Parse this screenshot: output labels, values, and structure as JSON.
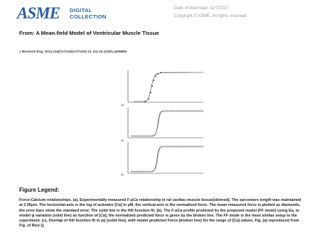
{
  "header": {
    "logo": "ASME",
    "logo_line1": "DIGITAL",
    "logo_line2": "COLLECTION",
    "date": "Date of download:  11/7/2017",
    "copyright": "Copyright © ASME. All rights reserved."
  },
  "title": "From: A Mean-field Model of Ventricular Muscle Tissue",
  "citation": "J Biomech Eng. 2012;134(7):071003-071003-13. doi:10.1115/1.4006850",
  "figure": {
    "panels": [
      "(a)",
      "(b)",
      "(c)"
    ]
  },
  "legend": {
    "heading": "Figure Legend:",
    "text": "Force-Calcium relationships. (a), Experimentally measured F-pCa relationship in rat cardiac-muscle tissue(skinned). The sarcomere length was maintained at 2.05μm. The horizontal-axis is the log of activator [Ca] in μM, the vertical-axis is the normalized force. The mean measured force is plotted as diamonds, the error bars show the standard error. The solid line is the Hill function fit. (b), The F-pCa profile predicted by the proposed model (FF mode) using Eq.  to model ψ variation (solid line) as function of [Ca], the normalized predicted force is given by the broken line. The FF mode is the most similar setup to the experiment. (c), Overlap of Hill function fit in (a) (solid line), with model predicted Force (broken line) for the range of [Ca] values. Fig. (a) reproduced from Fig.  of Rice  []."
  }
}
